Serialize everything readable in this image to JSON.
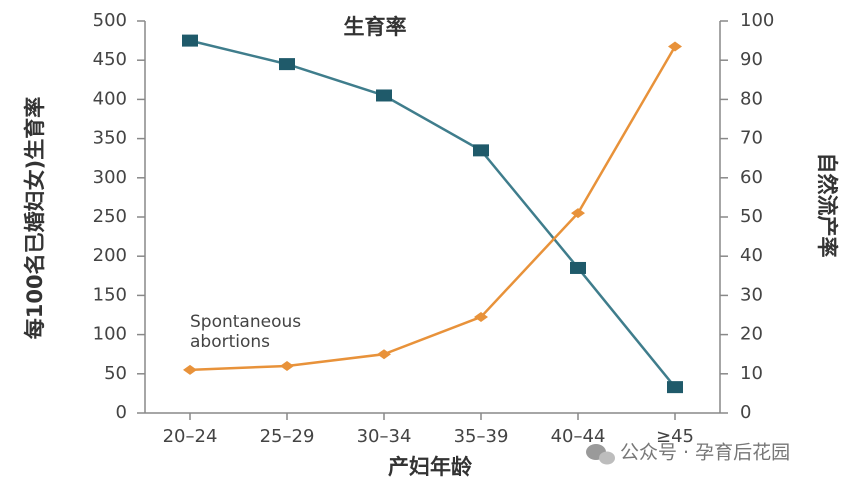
{
  "chart_data": {
    "type": "line",
    "title": "生育率",
    "y_label": "每100名已婚妇女)生育率",
    "y2_label": "自然流产率",
    "x_label": "产妇年龄",
    "annotation": [
      "Spontaneous",
      "abortions"
    ],
    "watermark": "公众号 · 孕育后花园",
    "categories": [
      "20–24",
      "25–29",
      "30–34",
      "35–39",
      "40–44",
      "≥45"
    ],
    "series": [
      {
        "color": "#3f7d8c",
        "marker": "square",
        "values": [
          475,
          445,
          405,
          335,
          185,
          33
        ]
      },
      {
        "color": "#e8923a",
        "marker": "diamond",
        "axis": "y2",
        "values": [
          11,
          12,
          15,
          24.5,
          51,
          93.5
        ]
      }
    ],
    "ylim": [
      0,
      500
    ],
    "yticks": [
      0,
      50,
      100,
      150,
      200,
      250,
      300,
      350,
      400,
      450,
      500
    ],
    "y2lim": [
      0,
      100
    ],
    "y2ticks": [
      0,
      10,
      20,
      30,
      40,
      50,
      60,
      70,
      80,
      90,
      100
    ]
  }
}
